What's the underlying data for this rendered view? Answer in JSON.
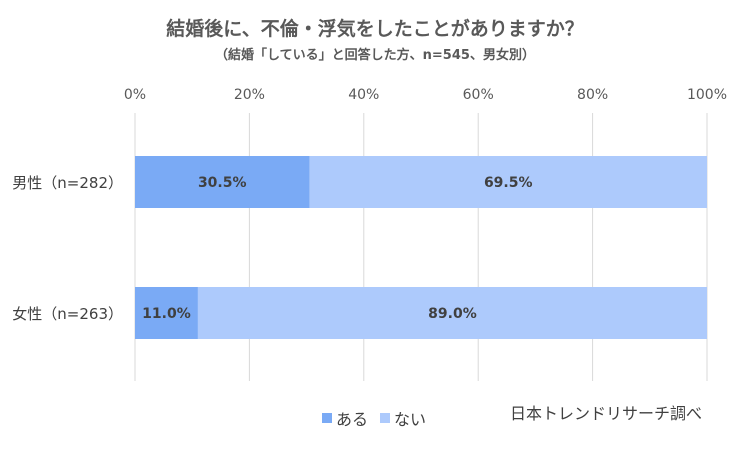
{
  "title": "結婚後に、不倫・浮気をしたことがありますか？",
  "subtitle": "（結婚「している」と回答した方、n=545、男女別）",
  "source": "日本トレンドリサーチ調べ",
  "chart_data": {
    "type": "bar",
    "orientation": "horizontal",
    "stacked": "percent",
    "title": "結婚後に、不倫・浮気をしたことがありますか？",
    "subtitle": "（結婚「している」と回答した方、n=545、男女別）",
    "categories": [
      "男性（n=282）",
      "女性（n=263）"
    ],
    "series": [
      {
        "name": "ある",
        "values": [
          30.5,
          11.0
        ],
        "labels": [
          "30.5%",
          "11.0%"
        ],
        "color": "#7aaaf5"
      },
      {
        "name": "ない",
        "values": [
          69.5,
          89.0
        ],
        "labels": [
          "69.5%",
          "89.0%"
        ],
        "color": "#adcafc"
      }
    ],
    "xlim": [
      0,
      100
    ],
    "x_ticks": [
      "0%",
      "20%",
      "40%",
      "60%",
      "80%",
      "100%"
    ],
    "x_tick_values": [
      0,
      20,
      40,
      60,
      80,
      100
    ],
    "grid": true,
    "legend_position": "bottom"
  }
}
